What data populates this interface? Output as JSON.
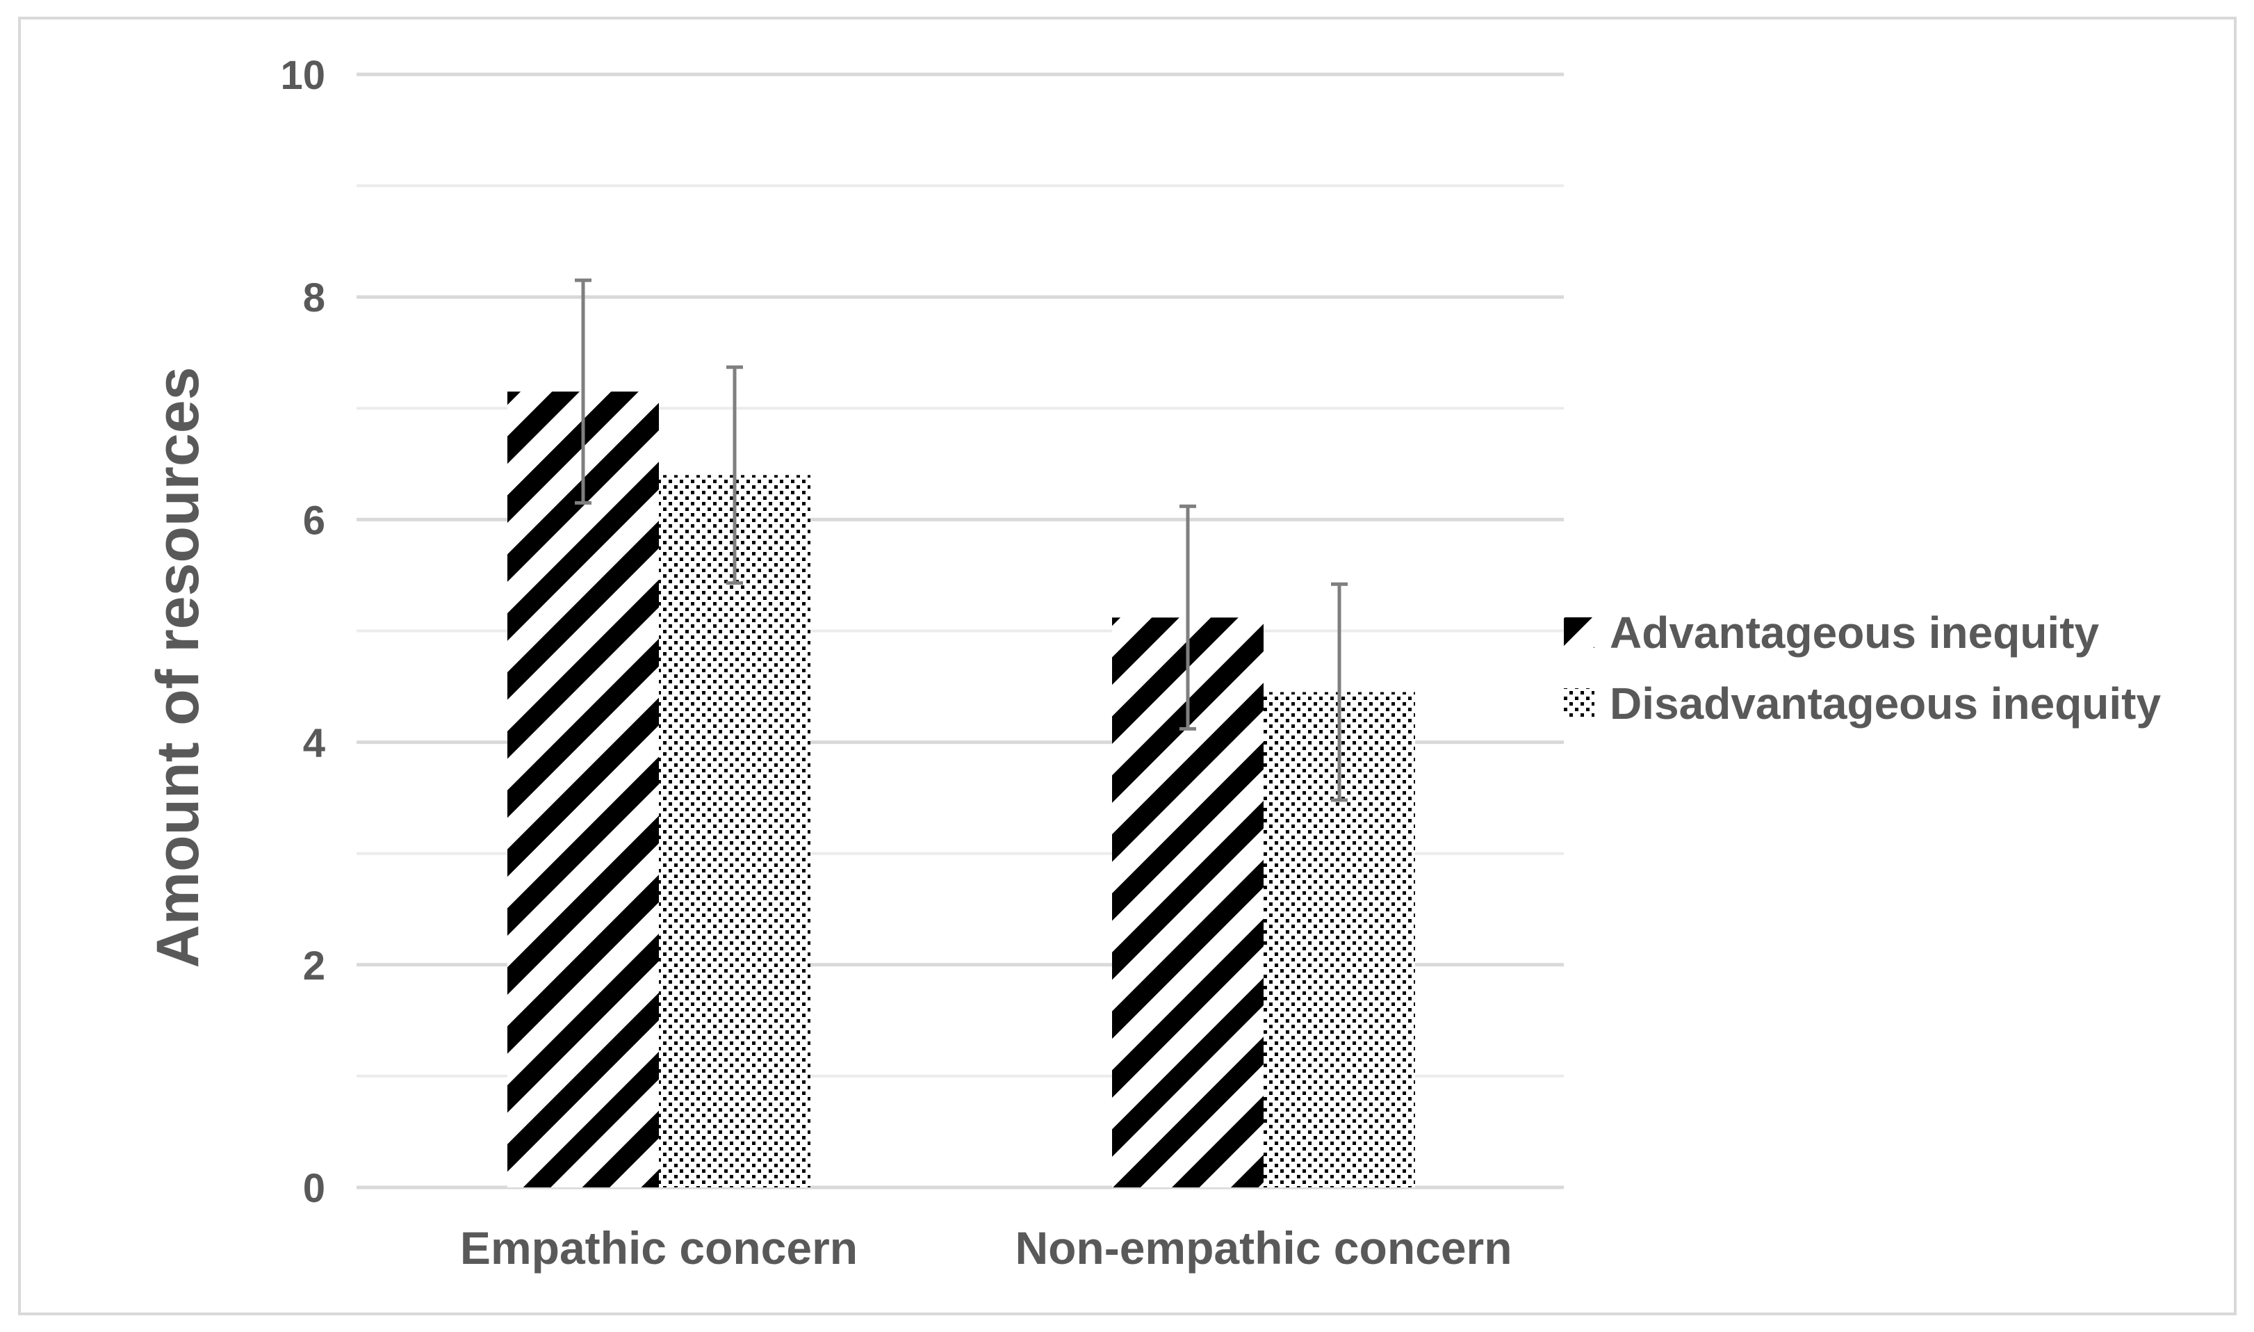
{
  "chart_data": {
    "type": "bar",
    "categories": [
      "Empathic concern",
      "Non-empathic concern"
    ],
    "series": [
      {
        "name": "Advantageous inequity",
        "values": [
          7.15,
          5.12
        ],
        "error": [
          1.0,
          1.0
        ],
        "pattern": "diagonal-stripes",
        "color": "#000000"
      },
      {
        "name": "Disadvantageous inequity",
        "values": [
          6.4,
          4.45
        ],
        "error": [
          0.97,
          0.97
        ],
        "pattern": "dots",
        "color": "#000000"
      }
    ],
    "xlabel": "",
    "ylabel": "Amount of resources",
    "ylim": [
      0,
      10
    ],
    "yticks": [
      0,
      2,
      4,
      6,
      8,
      10
    ],
    "minor_gridlines": [
      1,
      3,
      5,
      7,
      9
    ],
    "grid": true,
    "legend_position": "right",
    "grid_color": "#d9d9d9",
    "text_color": "#595959",
    "errorbar_color": "#7f7f7f"
  }
}
